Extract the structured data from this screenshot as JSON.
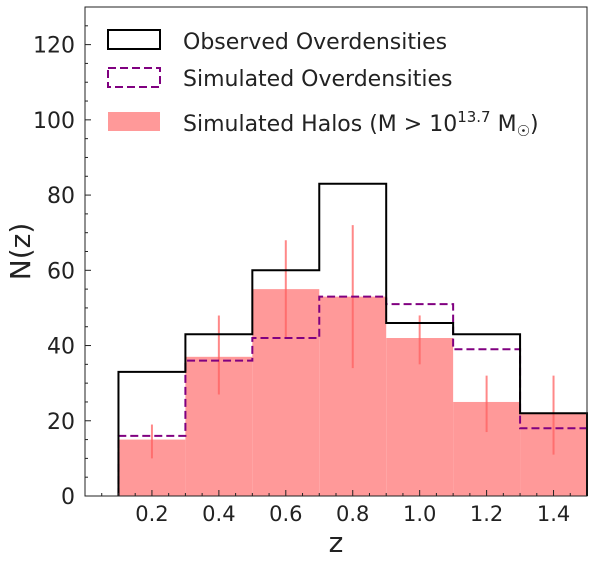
{
  "chart_data": {
    "type": "bar",
    "xlabel": "z",
    "ylabel": "N(z)",
    "xlim": [
      0.0,
      1.5
    ],
    "ylim": [
      0,
      130
    ],
    "xticks": [
      "0.2",
      "0.4",
      "0.6",
      "0.8",
      "1.0",
      "1.2",
      "1.4"
    ],
    "yticks": [
      "0",
      "20",
      "40",
      "60",
      "80",
      "100",
      "120"
    ],
    "bin_edges": [
      0.1,
      0.3,
      0.5,
      0.7,
      0.9,
      1.1,
      1.3,
      1.5
    ],
    "series": [
      {
        "name": "Observed Overdensities",
        "style": "step",
        "color": "#000000",
        "values": [
          33,
          43,
          60,
          83,
          46,
          43,
          22
        ]
      },
      {
        "name": "Simulated Overdensities",
        "style": "dashed-step",
        "color": "#800080",
        "values": [
          16,
          36,
          42,
          53,
          51,
          39,
          18
        ]
      },
      {
        "name": "Simulated Halos (M > 10",
        "name_sup": "13.7",
        "name_suffix": " M",
        "name_sub": "☉",
        "name_close": ")",
        "style": "filled",
        "color": "#ff9999",
        "values": [
          15,
          37,
          55,
          53,
          42,
          25,
          22
        ],
        "errors": [
          {
            "x": 0.2,
            "low": 10,
            "high": 19
          },
          {
            "x": 0.4,
            "low": 27,
            "high": 48
          },
          {
            "x": 0.6,
            "low": 42,
            "high": 68
          },
          {
            "x": 0.8,
            "low": 34,
            "high": 72
          },
          {
            "x": 1.0,
            "low": 35,
            "high": 48
          },
          {
            "x": 1.2,
            "low": 17,
            "high": 32
          },
          {
            "x": 1.4,
            "low": 11,
            "high": 32
          }
        ],
        "error_color": "#ff6060"
      }
    ],
    "legend_position": "top-left",
    "grid": false
  }
}
